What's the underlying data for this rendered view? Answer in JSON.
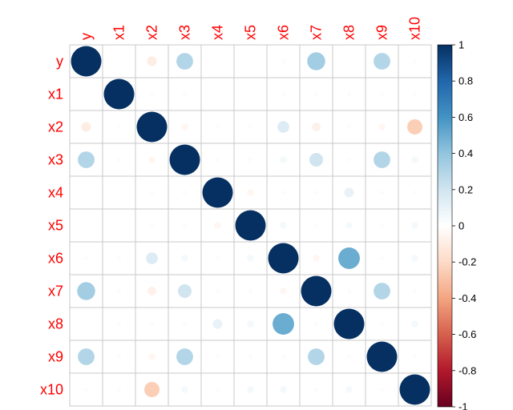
{
  "chart_data": {
    "type": "heatmap",
    "style": "corrplot-circle",
    "variables": [
      "y",
      "x1",
      "x2",
      "x3",
      "x4",
      "x5",
      "x6",
      "x7",
      "x8",
      "x9",
      "x10"
    ],
    "matrix": [
      [
        1.0,
        0.0,
        -0.1,
        0.3,
        0.0,
        0.0,
        0.02,
        0.35,
        0.0,
        0.3,
        0.02
      ],
      [
        0.0,
        1.0,
        0.02,
        0.02,
        0.0,
        0.0,
        0.02,
        0.02,
        0.02,
        0.02,
        0.02
      ],
      [
        -0.1,
        0.02,
        1.0,
        -0.05,
        0.02,
        0.02,
        0.15,
        -0.08,
        0.02,
        -0.05,
        -0.25
      ],
      [
        0.3,
        0.02,
        -0.05,
        1.0,
        0.02,
        0.02,
        0.05,
        0.2,
        0.02,
        0.3,
        0.05
      ],
      [
        0.0,
        0.0,
        0.02,
        0.02,
        1.0,
        -0.05,
        0.02,
        0.02,
        0.1,
        0.02,
        0.02
      ],
      [
        0.0,
        0.0,
        0.02,
        0.02,
        -0.05,
        1.0,
        0.05,
        0.02,
        0.05,
        0.02,
        0.05
      ],
      [
        0.02,
        0.02,
        0.15,
        0.05,
        0.02,
        0.05,
        1.0,
        -0.05,
        0.5,
        0.02,
        0.05
      ],
      [
        0.35,
        0.02,
        -0.08,
        0.2,
        0.02,
        0.02,
        -0.05,
        1.0,
        -0.02,
        0.3,
        0.02
      ],
      [
        0.0,
        0.02,
        0.02,
        0.02,
        0.1,
        0.05,
        0.5,
        -0.02,
        1.0,
        0.02,
        0.05
      ],
      [
        0.3,
        0.02,
        -0.05,
        0.3,
        0.02,
        0.02,
        0.02,
        0.3,
        0.02,
        1.0,
        0.02
      ],
      [
        0.02,
        0.02,
        -0.25,
        0.05,
        0.02,
        0.05,
        0.05,
        0.02,
        0.05,
        0.02,
        1.0
      ]
    ],
    "colorbar": {
      "range": [
        -1,
        1
      ],
      "ticks": [
        "1",
        "0.8",
        "0.6",
        "0.4",
        "0.2",
        "0",
        "-0.2",
        "-0.4",
        "-0.6",
        "-0.8",
        "-1"
      ]
    },
    "colors": {
      "negative_end": "#67001f",
      "negative_mid": "#d6604d",
      "neutral": "#ffffff",
      "positive_mid": "#4393c3",
      "positive_end": "#053061",
      "label": "#ff0000",
      "grid": "#c8c8c8"
    },
    "grid": true,
    "legend": "right"
  }
}
